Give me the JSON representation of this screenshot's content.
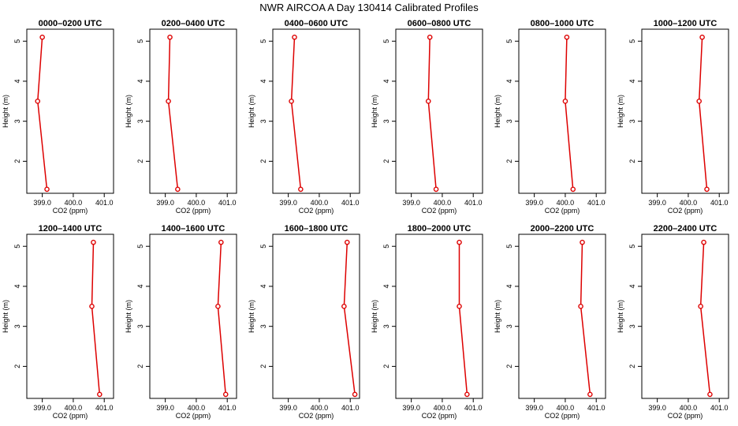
{
  "title": "NWR AIRCOA A  Day 130414  Calibrated Profiles",
  "colors": {
    "series": "#dd0000",
    "axis": "#000000",
    "background": "#ffffff"
  },
  "axes": {
    "xlabel": "CO2 (ppm)",
    "ylabel": "Height (m)",
    "xlim": [
      398.5,
      401.3
    ],
    "ylim": [
      1.2,
      5.3
    ],
    "xticks": [
      399.0,
      400.0,
      401.0
    ],
    "xtick_labels": [
      "399.0",
      "400.0",
      "401.0"
    ],
    "yticks": [
      2,
      3,
      4,
      5
    ],
    "ytick_labels": [
      "2",
      "3",
      "4",
      "5"
    ]
  },
  "chart_data": {
    "type": "line",
    "heights": [
      5.1,
      3.5,
      1.3
    ],
    "panels": [
      {
        "title": "0000–0200 UTC",
        "values": [
          399.0,
          398.85,
          399.15
        ]
      },
      {
        "title": "0200–0400 UTC",
        "values": [
          399.15,
          399.1,
          399.4
        ]
      },
      {
        "title": "0400–0600 UTC",
        "values": [
          399.2,
          399.1,
          399.4
        ]
      },
      {
        "title": "0600–0800 UTC",
        "values": [
          399.6,
          399.55,
          399.8
        ]
      },
      {
        "title": "0800–1000 UTC",
        "values": [
          400.05,
          400.0,
          400.25
        ]
      },
      {
        "title": "1000–1200 UTC",
        "values": [
          400.45,
          400.35,
          400.6
        ]
      },
      {
        "title": "1200–1400 UTC",
        "values": [
          400.65,
          400.6,
          400.85
        ]
      },
      {
        "title": "1400–1600 UTC",
        "values": [
          400.8,
          400.7,
          400.95
        ]
      },
      {
        "title": "1600–1800 UTC",
        "values": [
          400.9,
          400.8,
          401.15
        ]
      },
      {
        "title": "1800–2000 UTC",
        "values": [
          400.55,
          400.55,
          400.8
        ]
      },
      {
        "title": "2000–2200 UTC",
        "values": [
          400.55,
          400.5,
          400.8
        ]
      },
      {
        "title": "2200–2400 UTC",
        "values": [
          400.5,
          400.4,
          400.7
        ]
      }
    ]
  }
}
